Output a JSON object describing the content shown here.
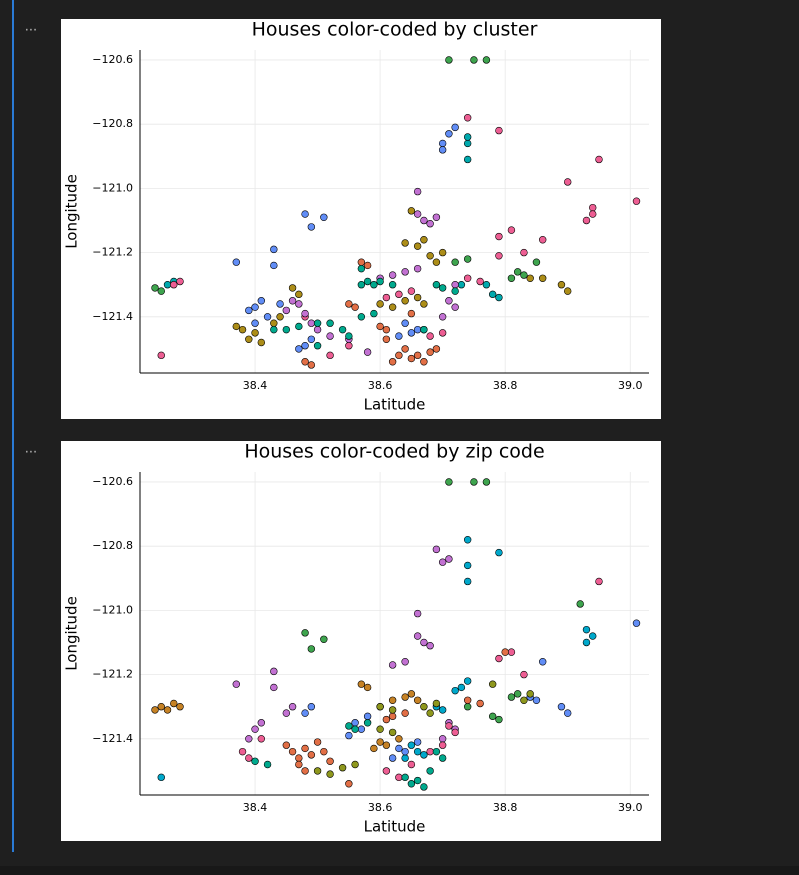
{
  "notebook": {
    "outputs": [
      {
        "menu": "..."
      },
      {
        "menu": "..."
      }
    ]
  },
  "chart_data": [
    {
      "type": "scatter",
      "title": "Houses color-coded by cluster",
      "xlabel": "Latitude",
      "ylabel": "Longitude",
      "xlim": [
        38.216,
        39.03
      ],
      "ylim": [
        -121.575,
        -120.569
      ],
      "grid": true,
      "xticks": [
        38.4,
        38.6,
        38.8,
        {
          "value": 39.0,
          "label": "39.0"
        }
      ],
      "yticks": [
        {
          "value": -121.4,
          "label": "−121.4"
        },
        {
          "value": -121.2,
          "label": "−121.2"
        },
        {
          "value": -121.0,
          "label": "−121.0"
        },
        {
          "value": -120.8,
          "label": "−120.8"
        },
        {
          "value": -120.6,
          "label": "−120.6"
        }
      ],
      "series": [
        {
          "color": "#3ea44e",
          "x": [
            38.71,
            38.75,
            38.77,
            38.83,
            38.82,
            38.85,
            38.81,
            38.72,
            38.74,
            38.24,
            38.25
          ],
          "values": [
            -120.6,
            -120.6,
            -120.6,
            -121.27,
            -121.26,
            -121.23,
            -121.28,
            -121.23,
            -121.22,
            -121.31,
            -121.32
          ]
        },
        {
          "color": "#618df6",
          "x": [
            38.71,
            38.72,
            38.7,
            38.7,
            38.48,
            38.49,
            38.51,
            38.43,
            38.43,
            38.37,
            38.4,
            38.41,
            38.42,
            38.39,
            38.4,
            38.44,
            38.48,
            38.47,
            38.49,
            38.65,
            38.66,
            38.63,
            38.64
          ],
          "values": [
            -120.83,
            -120.81,
            -120.86,
            -120.88,
            -121.08,
            -121.12,
            -121.09,
            -121.19,
            -121.24,
            -121.23,
            -121.37,
            -121.35,
            -121.4,
            -121.38,
            -121.42,
            -121.36,
            -121.49,
            -121.5,
            -121.47,
            -121.45,
            -121.44,
            -121.46,
            -121.42
          ]
        },
        {
          "color": "#00a9ad",
          "x": [
            38.74,
            38.74,
            38.74,
            38.26,
            38.27,
            38.79,
            38.78,
            38.73,
            38.77
          ],
          "values": [
            -120.86,
            -120.91,
            -120.84,
            -121.3,
            -121.29,
            -121.34,
            -121.33,
            -121.3,
            -121.3
          ]
        },
        {
          "color": "#ed5e93",
          "x": [
            38.74,
            38.79,
            38.95,
            38.9,
            38.93,
            38.94,
            39.01,
            38.94,
            38.86,
            38.81,
            38.79,
            38.83,
            38.79,
            38.25,
            38.28,
            38.27,
            38.63,
            38.61,
            38.65,
            38.74,
            38.76,
            38.67,
            38.68,
            38.7,
            38.55,
            38.52,
            38.48
          ],
          "values": [
            -120.78,
            -120.82,
            -120.91,
            -120.98,
            -121.1,
            -121.06,
            -121.04,
            -121.08,
            -121.16,
            -121.13,
            -121.15,
            -121.2,
            -121.21,
            -121.52,
            -121.29,
            -121.3,
            -121.33,
            -121.34,
            -121.32,
            -121.28,
            -121.29,
            -121.44,
            -121.46,
            -121.45,
            -121.49,
            -121.52,
            -121.4
          ]
        },
        {
          "color": "#c271d2",
          "x": [
            38.66,
            38.66,
            38.67,
            38.68,
            38.69,
            38.6,
            38.62,
            38.64,
            38.66,
            38.46,
            38.47,
            38.45,
            38.48,
            38.49,
            38.5,
            38.71,
            38.72,
            38.7,
            38.72,
            38.52,
            38.55,
            38.58
          ],
          "values": [
            -121.01,
            -121.08,
            -121.1,
            -121.11,
            -121.09,
            -121.28,
            -121.27,
            -121.26,
            -121.25,
            -121.35,
            -121.36,
            -121.38,
            -121.39,
            -121.42,
            -121.44,
            -121.35,
            -121.37,
            -121.4,
            -121.3,
            -121.46,
            -121.47,
            -121.51
          ]
        },
        {
          "color": "#e26f46",
          "x": [
            38.57,
            38.58,
            38.55,
            38.56,
            38.64,
            38.66,
            38.67,
            38.65,
            38.68,
            38.62,
            38.63,
            38.69,
            38.61,
            38.61,
            38.6,
            38.65,
            38.48,
            38.49
          ],
          "values": [
            -121.23,
            -121.24,
            -121.36,
            -121.37,
            -121.5,
            -121.52,
            -121.54,
            -121.53,
            -121.51,
            -121.54,
            -121.52,
            -121.5,
            -121.44,
            -121.47,
            -121.43,
            -121.39,
            -121.54,
            -121.55
          ]
        },
        {
          "color": "#ac8d18",
          "x": [
            38.37,
            38.38,
            38.4,
            38.39,
            38.41,
            38.43,
            38.44,
            38.46,
            38.47,
            38.6,
            38.62,
            38.64,
            38.66,
            38.67,
            38.68,
            38.69,
            38.67,
            38.66,
            38.7,
            38.89,
            38.9,
            38.86,
            38.84,
            38.65,
            38.64
          ],
          "values": [
            -121.43,
            -121.44,
            -121.45,
            -121.47,
            -121.48,
            -121.42,
            -121.4,
            -121.31,
            -121.33,
            -121.36,
            -121.37,
            -121.35,
            -121.34,
            -121.36,
            -121.21,
            -121.23,
            -121.16,
            -121.18,
            -121.2,
            -121.3,
            -121.32,
            -121.28,
            -121.28,
            -121.07,
            -121.17
          ]
        },
        {
          "color": "#00a98d",
          "x": [
            38.43,
            38.45,
            38.47,
            38.5,
            38.52,
            38.54,
            38.55,
            38.5,
            38.58,
            38.59,
            38.57,
            38.57,
            38.62,
            38.6,
            38.69,
            38.7,
            38.72,
            38.67,
            38.57,
            38.59
          ],
          "values": [
            -121.44,
            -121.44,
            -121.43,
            -121.42,
            -121.42,
            -121.44,
            -121.46,
            -121.49,
            -121.29,
            -121.3,
            -121.3,
            -121.25,
            -121.3,
            -121.29,
            -121.3,
            -121.31,
            -121.32,
            -121.44,
            -121.4,
            -121.39
          ]
        }
      ]
    },
    {
      "type": "scatter",
      "title": "Houses color-coded by zip code",
      "xlabel": "Latitude",
      "ylabel": "Longitude",
      "xlim": [
        38.216,
        39.03
      ],
      "ylim": [
        -121.575,
        -120.569
      ],
      "grid": true,
      "xticks": [
        38.4,
        38.6,
        38.8,
        {
          "value": 39.0,
          "label": "39.0"
        }
      ],
      "yticks": [
        {
          "value": -121.4,
          "label": "−121.4"
        },
        {
          "value": -121.2,
          "label": "−121.2"
        },
        {
          "value": -121.0,
          "label": "−121.0"
        },
        {
          "value": -120.8,
          "label": "−120.8"
        },
        {
          "value": -120.6,
          "label": "−120.6"
        }
      ],
      "series": [
        {
          "color": "#3ea44e",
          "x": [
            38.71,
            38.75,
            38.77,
            38.92,
            38.48,
            38.49,
            38.51,
            38.79,
            38.78,
            38.74,
            38.82,
            38.81
          ],
          "values": [
            -120.6,
            -120.6,
            -120.6,
            -120.98,
            -121.07,
            -121.12,
            -121.09,
            -121.34,
            -121.33,
            -121.3,
            -121.26,
            -121.27
          ]
        },
        {
          "color": "#00a8cb",
          "x": [
            38.74,
            38.79,
            38.74,
            38.74,
            38.93,
            38.94,
            38.93,
            38.25,
            38.72,
            38.73,
            38.74,
            38.69,
            38.7,
            38.65,
            38.66,
            38.64,
            38.67
          ],
          "values": [
            -120.78,
            -120.82,
            -120.86,
            -120.91,
            -121.06,
            -121.08,
            -121.1,
            -121.52,
            -121.25,
            -121.24,
            -121.22,
            -121.3,
            -121.31,
            -121.42,
            -121.44,
            -121.46,
            -121.45
          ]
        },
        {
          "color": "#c271d2",
          "x": [
            38.69,
            38.7,
            38.71,
            38.66,
            38.66,
            38.67,
            38.68,
            38.43,
            38.43,
            38.37,
            38.4,
            38.41,
            38.39,
            38.71,
            38.72,
            38.7,
            38.46,
            38.45,
            38.62,
            38.64
          ],
          "values": [
            -120.81,
            -120.85,
            -120.84,
            -121.01,
            -121.08,
            -121.1,
            -121.11,
            -121.19,
            -121.24,
            -121.23,
            -121.37,
            -121.35,
            -121.4,
            -121.35,
            -121.37,
            -121.4,
            -121.3,
            -121.32,
            -121.17,
            -121.16
          ]
        },
        {
          "color": "#ed5e93",
          "x": [
            38.95,
            38.81,
            38.79,
            38.83,
            38.71,
            38.72,
            38.7,
            38.68,
            38.41,
            38.38,
            38.39,
            38.61,
            38.63,
            38.65
          ],
          "values": [
            -120.91,
            -121.13,
            -121.15,
            -121.2,
            -121.36,
            -121.38,
            -121.42,
            -121.44,
            -121.4,
            -121.44,
            -121.46,
            -121.5,
            -121.52,
            -121.48
          ]
        },
        {
          "color": "#618df6",
          "x": [
            39.01,
            38.86,
            38.89,
            38.9,
            38.84,
            38.85,
            38.56,
            38.57,
            38.55,
            38.58,
            38.48,
            38.49,
            38.63,
            38.64,
            38.62,
            38.66
          ],
          "values": [
            -121.04,
            -121.16,
            -121.3,
            -121.32,
            -121.27,
            -121.28,
            -121.35,
            -121.37,
            -121.39,
            -121.33,
            -121.32,
            -121.3,
            -121.43,
            -121.44,
            -121.46,
            -121.41
          ]
        },
        {
          "color": "#c68225",
          "x": [
            38.24,
            38.25,
            38.26,
            38.27,
            38.28,
            38.57,
            38.58,
            38.6,
            38.62,
            38.64,
            38.65,
            38.66,
            38.6,
            38.61,
            38.63,
            38.59
          ],
          "values": [
            -121.31,
            -121.3,
            -121.31,
            -121.29,
            -121.3,
            -121.23,
            -121.24,
            -121.3,
            -121.28,
            -121.27,
            -121.26,
            -121.28,
            -121.41,
            -121.42,
            -121.4,
            -121.43
          ]
        },
        {
          "color": "#e26f46",
          "x": [
            38.45,
            38.46,
            38.47,
            38.48,
            38.49,
            38.5,
            38.51,
            38.47,
            38.48,
            38.52,
            38.55,
            38.61,
            38.62,
            38.64,
            38.8,
            38.76,
            38.74
          ],
          "values": [
            -121.42,
            -121.44,
            -121.46,
            -121.43,
            -121.45,
            -121.41,
            -121.44,
            -121.48,
            -121.5,
            -121.47,
            -121.54,
            -121.34,
            -121.33,
            -121.32,
            -121.13,
            -121.29,
            -121.28
          ]
        },
        {
          "color": "#8e971d",
          "x": [
            38.5,
            38.52,
            38.54,
            38.56,
            38.6,
            38.62,
            38.6,
            38.62,
            38.67,
            38.68,
            38.69,
            38.78,
            38.83,
            38.84
          ],
          "values": [
            -121.5,
            -121.51,
            -121.49,
            -121.48,
            -121.37,
            -121.38,
            -121.3,
            -121.31,
            -121.3,
            -121.32,
            -121.29,
            -121.23,
            -121.28,
            -121.26
          ]
        },
        {
          "color": "#00a98d",
          "x": [
            38.4,
            38.42,
            38.55,
            38.56,
            38.58,
            38.64,
            38.65,
            38.66,
            38.67,
            38.68,
            38.69,
            38.7
          ],
          "values": [
            -121.47,
            -121.48,
            -121.36,
            -121.37,
            -121.35,
            -121.52,
            -121.54,
            -121.53,
            -121.55,
            -121.5,
            -121.44,
            -121.46
          ]
        }
      ]
    }
  ]
}
